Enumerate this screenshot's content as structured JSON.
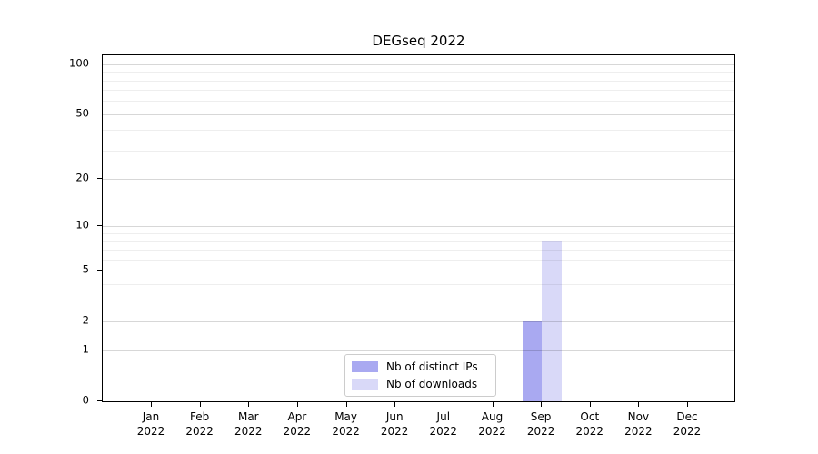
{
  "chart_data": {
    "type": "bar",
    "title": "DEGseq 2022",
    "x": {
      "months": [
        "Jan",
        "Feb",
        "Mar",
        "Apr",
        "May",
        "Jun",
        "Jul",
        "Aug",
        "Sep",
        "Oct",
        "Nov",
        "Dec"
      ],
      "year": "2022"
    },
    "series": [
      {
        "name": "Nb of distinct IPs",
        "color": "#a9a9f1",
        "values": [
          0,
          0,
          0,
          0,
          0,
          0,
          0,
          0,
          2,
          0,
          0,
          0
        ]
      },
      {
        "name": "Nb of downloads",
        "color": "#d9d9f8",
        "values": [
          0,
          0,
          0,
          0,
          0,
          0,
          0,
          0,
          8,
          0,
          0,
          0
        ]
      }
    ],
    "y_axis": {
      "scale": "log10(1+v)",
      "ticks": [
        0,
        1,
        2,
        5,
        10,
        20,
        50,
        100
      ],
      "minor_gridlines": [
        3,
        4,
        6,
        7,
        8,
        9,
        30,
        40,
        60,
        70,
        80,
        90
      ],
      "ylim": [
        0,
        113
      ]
    },
    "legend": {
      "position": "bottom-center",
      "entries": [
        "Nb of distinct IPs",
        "Nb of downloads"
      ]
    },
    "grid": "horizontal",
    "axis_color": "#000000",
    "background_color": "#ffffff"
  }
}
